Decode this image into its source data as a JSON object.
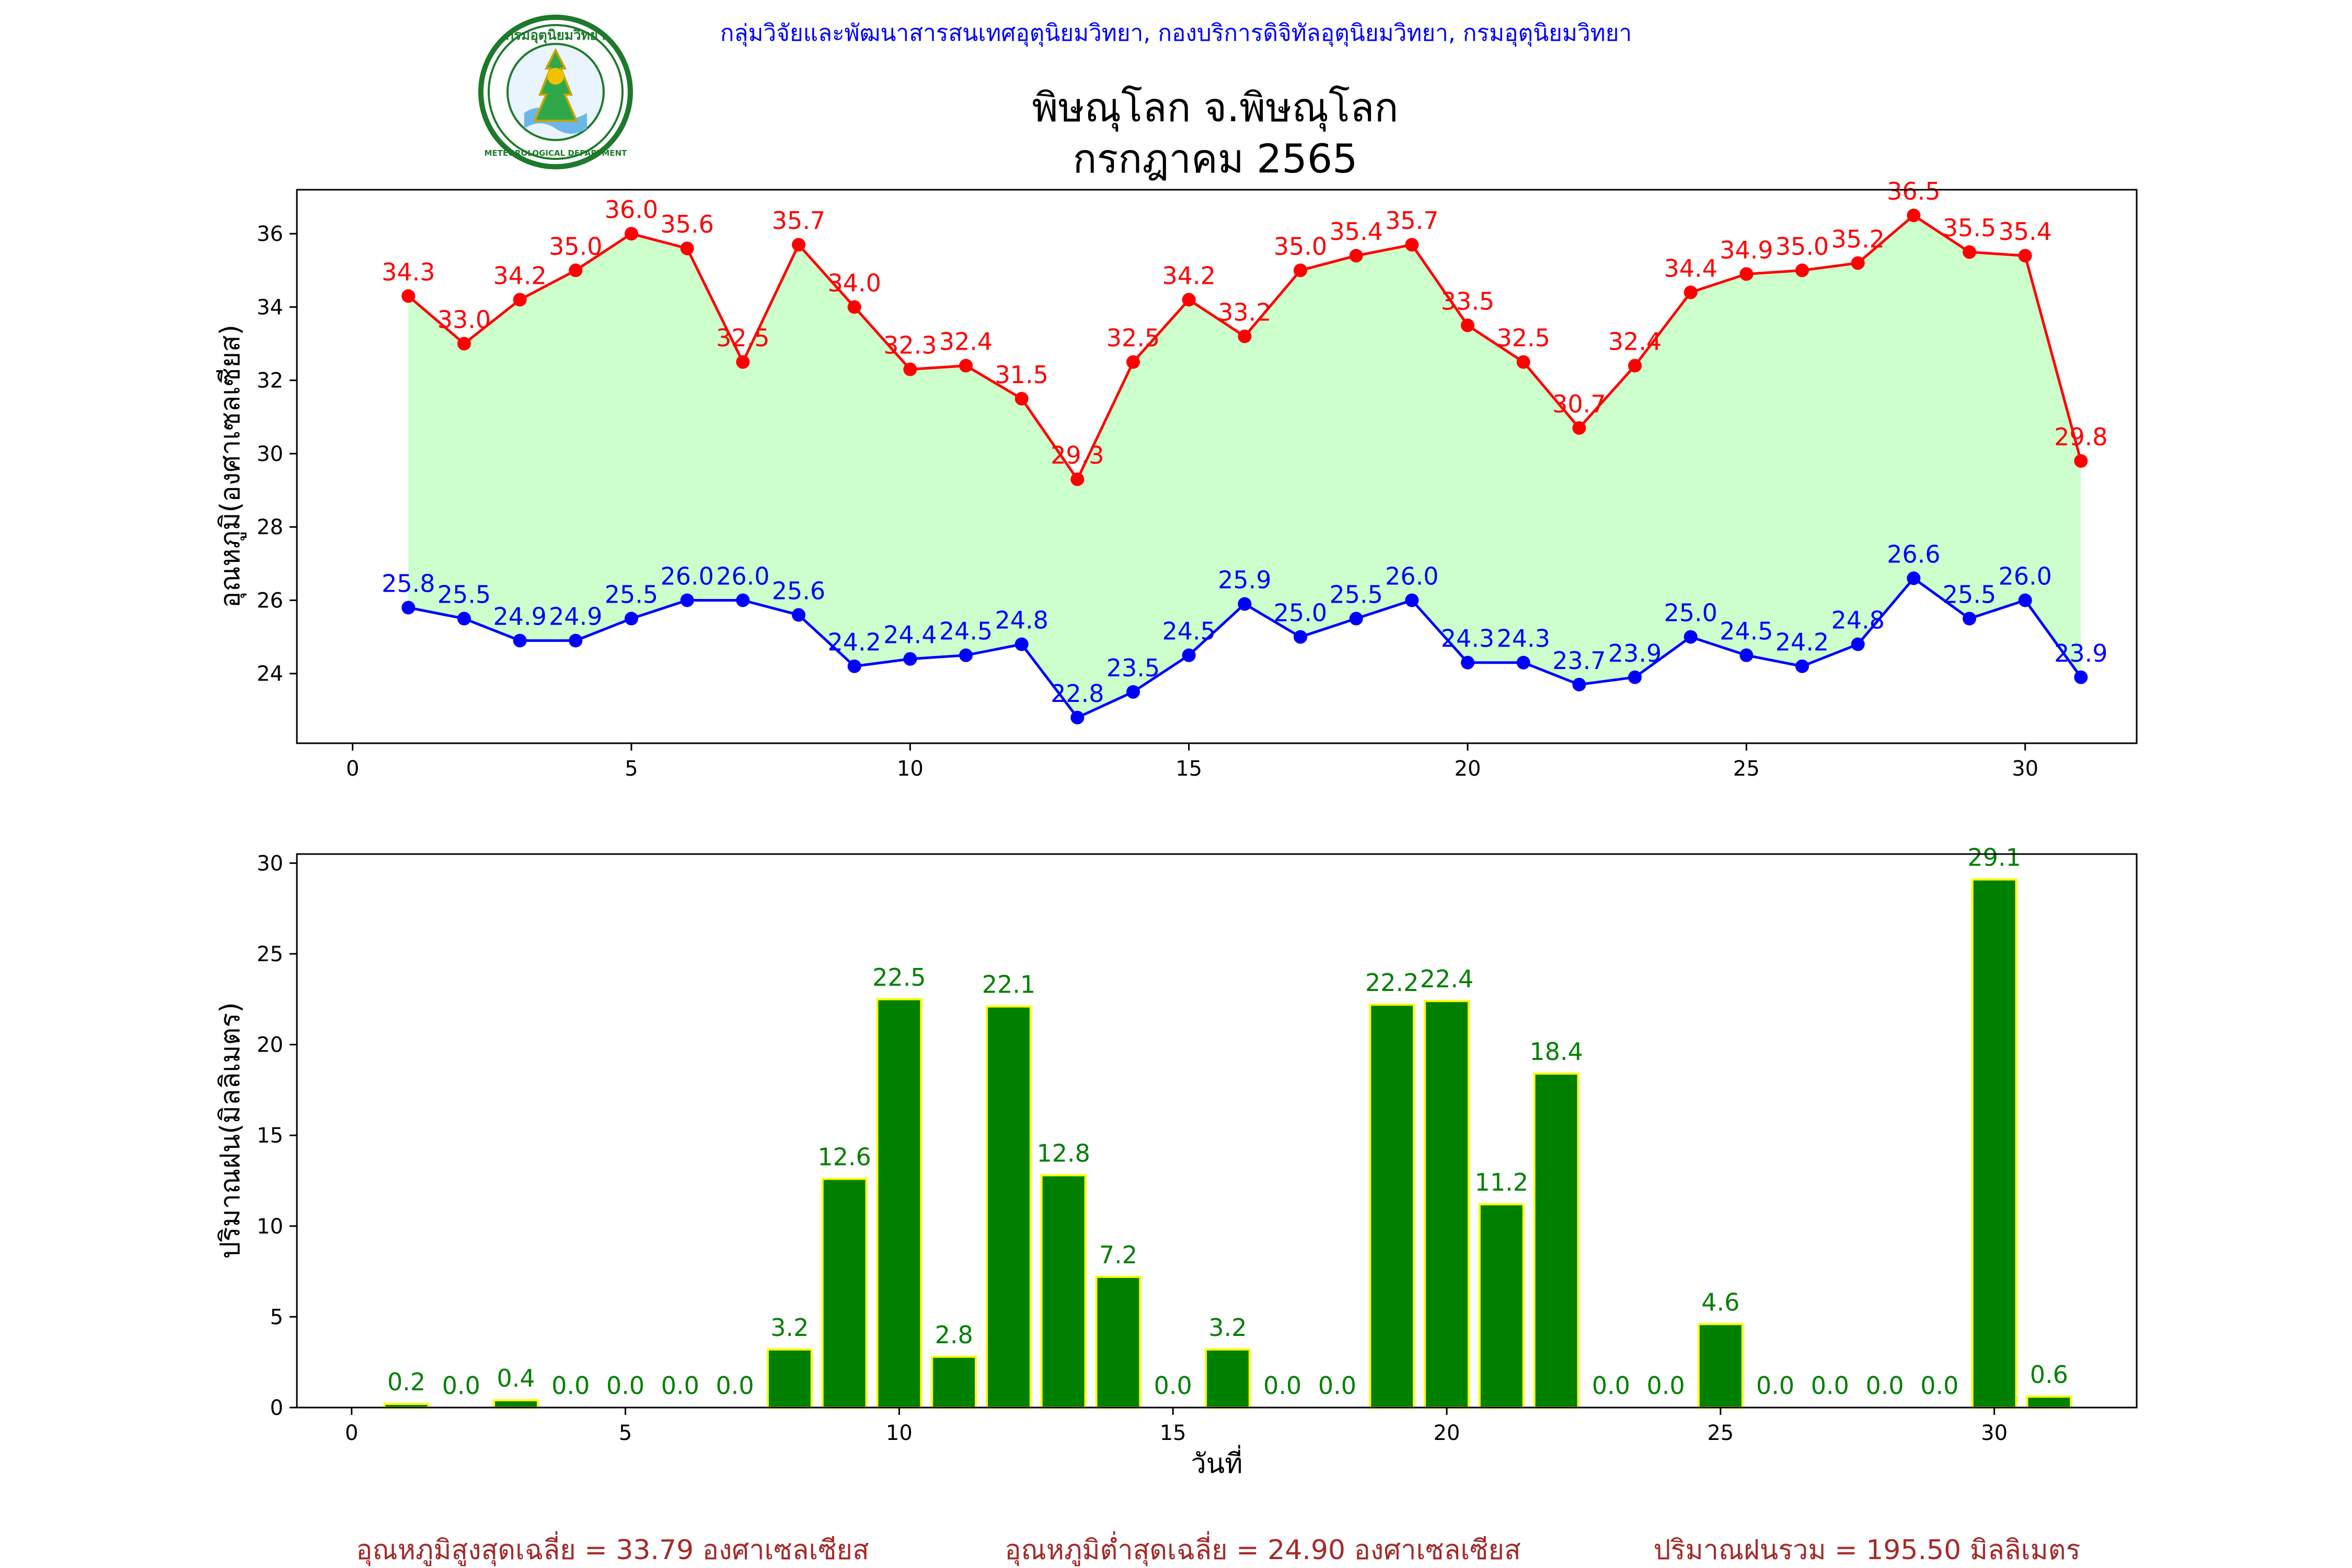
{
  "header": {
    "organization": "กลุ่มวิจัยและพัฒนาสารสนเทศอุตุนิยมวิทยา, กองบริการดิจิทัลอุตุนิยมวิทยา, กรมอุตุนิยมวิทยา",
    "title_line1": "พิษณุโลก จ.พิษณุโลก",
    "title_line2": "กรกฎาคม 2565",
    "logo_text": "METEOROLOGICAL DEPARTMENT"
  },
  "colors": {
    "organization_text": "#0000ff",
    "max_temp": "#ff0000",
    "min_temp": "#0000ff",
    "temp_fill": "#ccffcc",
    "rain_bar": "#008000",
    "rain_edge": "#ffff00",
    "rain_label": "#008000",
    "footer_text": "#a52a2a"
  },
  "chart_data": [
    {
      "type": "line",
      "ylabel": "อุณหภูมิ(องศาเซลเซียส)",
      "xlabel": "",
      "xlim": [
        -1,
        32
      ],
      "ylim": [
        22.1,
        37.2
      ],
      "xticks": [
        0,
        5,
        10,
        15,
        20,
        25,
        30
      ],
      "yticks": [
        24,
        26,
        28,
        30,
        32,
        34,
        36
      ],
      "grid": false,
      "x": [
        1,
        2,
        3,
        4,
        5,
        6,
        7,
        8,
        9,
        10,
        11,
        12,
        13,
        14,
        15,
        16,
        17,
        18,
        19,
        20,
        21,
        22,
        23,
        24,
        25,
        26,
        27,
        28,
        29,
        30,
        31
      ],
      "series": [
        {
          "key": "max",
          "color_key": "max_temp",
          "values": [
            34.3,
            33.0,
            34.2,
            35.0,
            36.0,
            35.6,
            32.5,
            35.7,
            34.0,
            32.3,
            32.4,
            31.5,
            29.3,
            32.5,
            34.2,
            33.2,
            35.0,
            35.4,
            35.7,
            33.5,
            32.5,
            30.7,
            32.4,
            34.4,
            34.9,
            35.0,
            35.2,
            36.5,
            35.5,
            35.4,
            29.8
          ]
        },
        {
          "key": "min",
          "color_key": "min_temp",
          "values": [
            25.8,
            25.5,
            24.9,
            24.9,
            25.5,
            26.0,
            26.0,
            25.6,
            24.2,
            24.4,
            24.5,
            24.8,
            22.8,
            23.5,
            24.5,
            25.9,
            25.0,
            25.5,
            26.0,
            24.3,
            24.3,
            23.7,
            23.9,
            25.0,
            24.5,
            24.2,
            24.8,
            26.6,
            25.5,
            26.0,
            23.9
          ]
        }
      ]
    },
    {
      "type": "bar",
      "ylabel": "ปริมาณฝน(มิลลิเมตร)",
      "xlabel": "วันที่",
      "xlim": [
        -1,
        32.6
      ],
      "ylim": [
        0,
        30.5
      ],
      "xticks": [
        0,
        5,
        10,
        15,
        20,
        25,
        30
      ],
      "yticks": [
        0,
        5,
        10,
        15,
        20,
        25,
        30
      ],
      "grid": false,
      "x": [
        1,
        2,
        3,
        4,
        5,
        6,
        7,
        8,
        9,
        10,
        11,
        12,
        13,
        14,
        15,
        16,
        17,
        18,
        19,
        20,
        21,
        22,
        23,
        24,
        25,
        26,
        27,
        28,
        29,
        30,
        31
      ],
      "values": [
        0.2,
        0.0,
        0.4,
        0.0,
        0.0,
        0.0,
        0.0,
        3.2,
        12.6,
        22.5,
        2.8,
        22.1,
        12.8,
        7.2,
        0.0,
        3.2,
        0.0,
        0.0,
        22.2,
        22.4,
        11.2,
        18.4,
        0.0,
        0.0,
        4.6,
        0.0,
        0.0,
        0.0,
        0.0,
        29.1,
        0.6
      ]
    }
  ],
  "footer": {
    "avg_max": "อุณหภูมิสูงสุดเฉลี่ย = 33.79 องศาเซลเซียส",
    "avg_min": "อุณหภูมิต่ำสุดเฉลี่ย = 24.90 องศาเซลเซียส",
    "total_rain": "ปริมาณฝนรวม = 195.50 มิลลิเมตร"
  }
}
